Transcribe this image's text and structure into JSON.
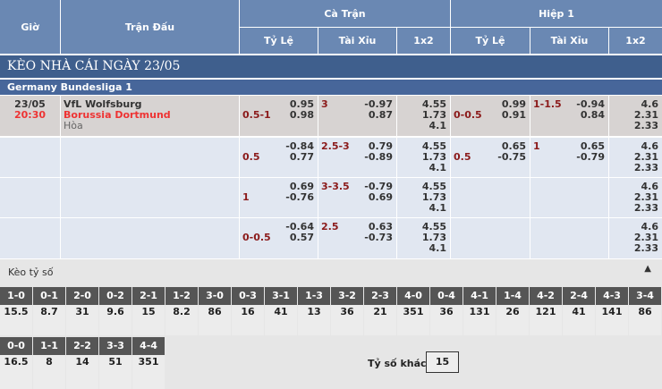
{
  "header": {
    "gio": "Giờ",
    "tran_dau": "Trận Đấu",
    "ca_tran": "Cà Trận",
    "hiep1": "Hiệp 1",
    "ty_le": "Tỷ Lệ",
    "tai_xiu": "Tài Xỉu",
    "x12": "1x2"
  },
  "title": "KÈO NHÀ CÁI NGÀY 23/05",
  "league": "Germany Bundesliga 1",
  "match": {
    "date": "23/05",
    "time": "20:30",
    "home": "VfL Wolfsburg",
    "away": "Borussia Dortmund",
    "draw": "Hòa"
  },
  "rows": [
    {
      "tl": "0.5-1",
      "tl1": "0.95",
      "tl2": "0.98",
      "tx": "3",
      "tx1": "-0.97",
      "tx2": "0.87",
      "o1": "4.55",
      "o2": "1.73",
      "o3": "4.1",
      "htl": "0-0.5",
      "htl1": "0.99",
      "htl2": "0.91",
      "htx": "1-1.5",
      "htx1": "-0.94",
      "htx2": "0.84",
      "h1": "4.6",
      "h2": "2.31",
      "h3": "2.33"
    },
    {
      "tl": "0.5",
      "tl1": "-0.84",
      "tl2": "0.77",
      "tx": "2.5-3",
      "tx1": "0.79",
      "tx2": "-0.89",
      "o1": "4.55",
      "o2": "1.73",
      "o3": "4.1",
      "htl": "0.5",
      "htl1": "0.65",
      "htl2": "-0.75",
      "htx": "1",
      "htx1": "0.65",
      "htx2": "-0.79",
      "h1": "4.6",
      "h2": "2.31",
      "h3": "2.33"
    },
    {
      "tl": "1",
      "tl1": "0.69",
      "tl2": "-0.76",
      "tx": "3-3.5",
      "tx1": "-0.79",
      "tx2": "0.69",
      "o1": "4.55",
      "o2": "1.73",
      "o3": "4.1",
      "htl": "",
      "htl1": "",
      "htl2": "",
      "htx": "",
      "htx1": "",
      "htx2": "",
      "h1": "4.6",
      "h2": "2.31",
      "h3": "2.33"
    },
    {
      "tl": "0-0.5",
      "tl1": "-0.64",
      "tl2": "0.57",
      "tx": "2.5",
      "tx1": "0.63",
      "tx2": "-0.73",
      "o1": "4.55",
      "o2": "1.73",
      "o3": "4.1",
      "htl": "",
      "htl1": "",
      "htl2": "",
      "htx": "",
      "htx1": "",
      "htx2": "",
      "h1": "4.6",
      "h2": "2.31",
      "h3": "2.33"
    }
  ],
  "scores_title": "Kèo tỷ số",
  "scores": [
    {
      "k": "1-0",
      "v": "15.5"
    },
    {
      "k": "0-1",
      "v": "8.7"
    },
    {
      "k": "2-0",
      "v": "31"
    },
    {
      "k": "0-2",
      "v": "9.6"
    },
    {
      "k": "2-1",
      "v": "15"
    },
    {
      "k": "1-2",
      "v": "8.2"
    },
    {
      "k": "3-0",
      "v": "86"
    },
    {
      "k": "0-3",
      "v": "16"
    },
    {
      "k": "3-1",
      "v": "41"
    },
    {
      "k": "1-3",
      "v": "13"
    },
    {
      "k": "3-2",
      "v": "36"
    },
    {
      "k": "2-3",
      "v": "21"
    },
    {
      "k": "4-0",
      "v": "351"
    },
    {
      "k": "0-4",
      "v": "36"
    },
    {
      "k": "4-1",
      "v": "131"
    },
    {
      "k": "1-4",
      "v": "26"
    },
    {
      "k": "4-2",
      "v": "121"
    },
    {
      "k": "2-4",
      "v": "41"
    },
    {
      "k": "4-3",
      "v": "141"
    },
    {
      "k": "3-4",
      "v": "86"
    },
    {
      "k": "0-0",
      "v": "16.5"
    },
    {
      "k": "1-1",
      "v": "8"
    },
    {
      "k": "2-2",
      "v": "14"
    },
    {
      "k": "3-3",
      "v": "51"
    },
    {
      "k": "4-4",
      "v": "351"
    }
  ],
  "other_label": "Tỷ số khác",
  "other_value": "15"
}
